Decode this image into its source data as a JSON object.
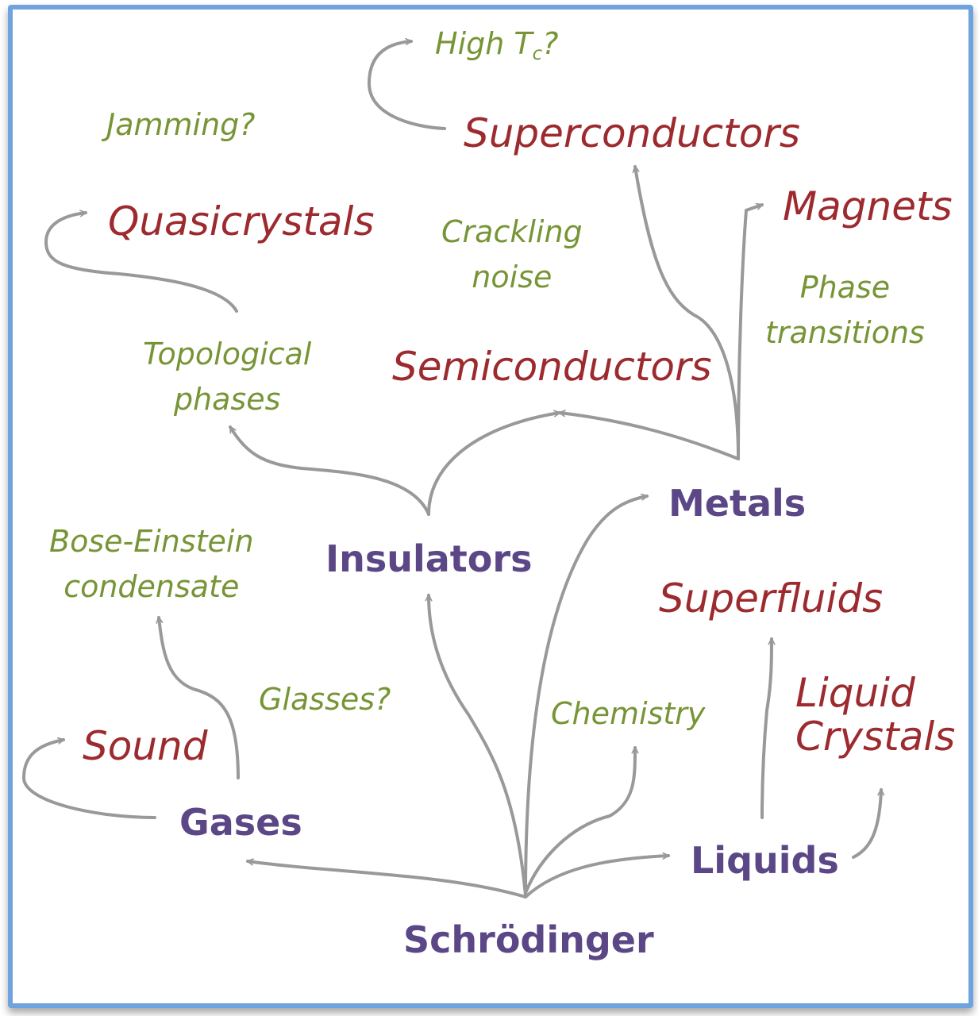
{
  "core_nodes": {
    "schrodinger": "Schrödinger",
    "gases": "Gases",
    "insulators": "Insulators",
    "metals": "Metals",
    "liquids": "Liquids"
  },
  "phases": {
    "superconductors": "Superconductors",
    "magnets": "Magnets",
    "quasicrystals": "Quasicrystals",
    "semiconductors": "Semiconductors",
    "superfluids": "Superfluids",
    "liquid_crystals_line1": "Liquid",
    "liquid_crystals_line2": "Crystals",
    "sound": "Sound"
  },
  "topics": {
    "high_tc_prefix": "High T",
    "high_tc_sub": "c",
    "high_tc_suffix": "?",
    "jamming": "Jamming?",
    "crackling_line1": "Crackling",
    "crackling_line2": "noise",
    "phase_transitions_line1": "Phase",
    "phase_transitions_line2": "transitions",
    "topological_line1": "Topological",
    "topological_line2": "phases",
    "bec_line1": "Bose-Einstein",
    "bec_line2": "condensate",
    "glasses": "Glasses?",
    "chemistry": "Chemistry"
  },
  "colors": {
    "frame": "#6fa3df",
    "core": "#5b4786",
    "phase": "#9c2a2e",
    "topic": "#779536",
    "arrow": "#999999"
  }
}
